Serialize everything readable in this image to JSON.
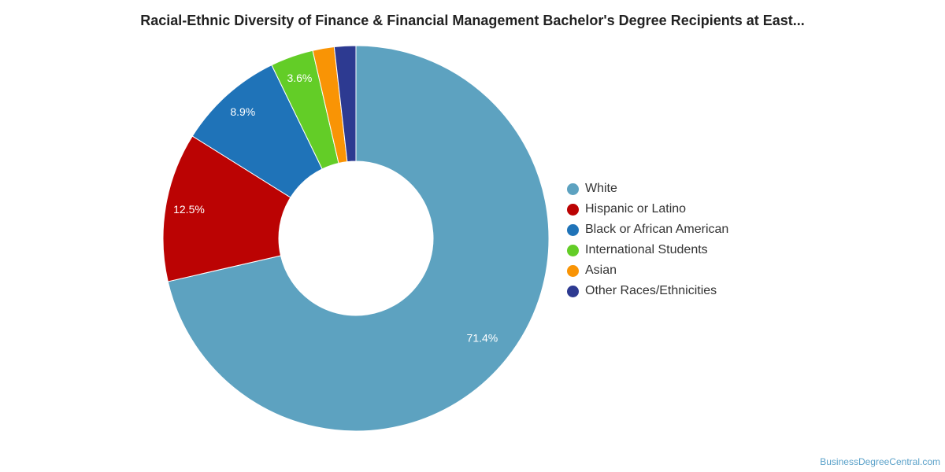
{
  "chart_data": {
    "type": "pie",
    "title": "Racial-Ethnic Diversity of Finance & Financial Management Bachelor's Degree Recipients at East...",
    "legend_position": "right",
    "slices": [
      {
        "name": "White",
        "value": 71.4,
        "label": "71.4%",
        "color": "#5da2c0"
      },
      {
        "name": "Hispanic or Latino",
        "value": 12.5,
        "label": "12.5%",
        "color": "#bb0303"
      },
      {
        "name": "Black or African American",
        "value": 8.9,
        "label": "8.9%",
        "color": "#1f73b8"
      },
      {
        "name": "International Students",
        "value": 3.6,
        "label": "3.6%",
        "color": "#63cd27"
      },
      {
        "name": "Asian",
        "value": 1.8,
        "label": "",
        "color": "#f99405"
      },
      {
        "name": "Other Races/Ethnicities",
        "value": 1.8,
        "label": "",
        "color": "#2d3a91"
      }
    ]
  },
  "watermark": "BusinessDegreeCentral.com"
}
